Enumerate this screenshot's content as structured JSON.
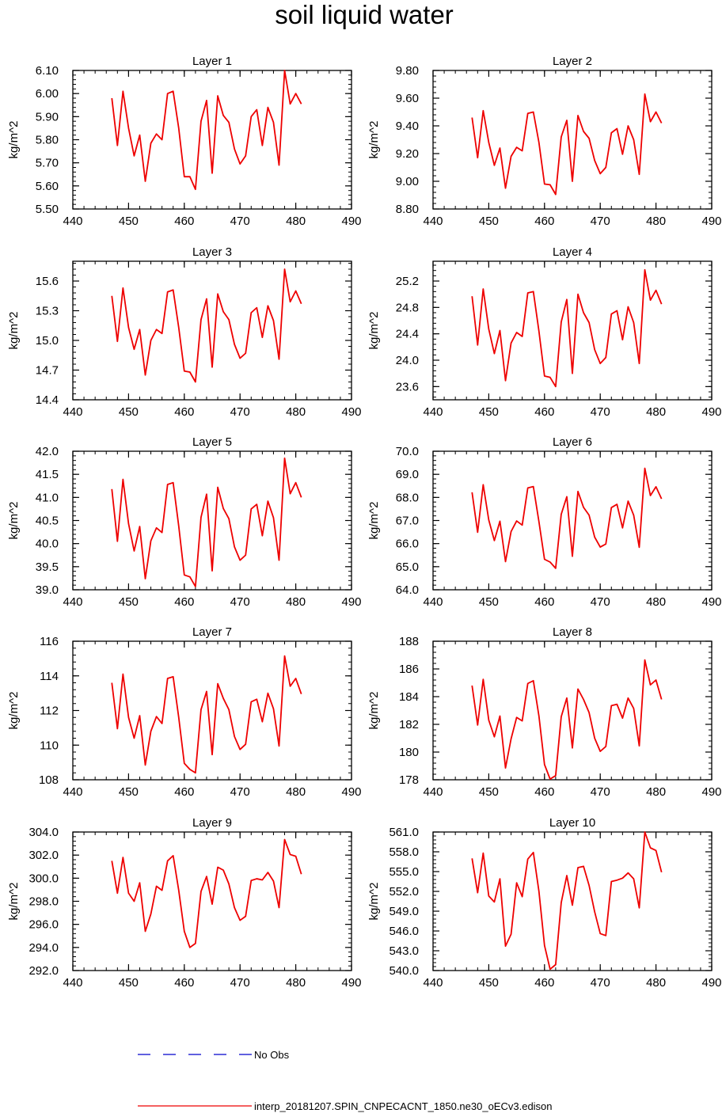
{
  "title": "soil liquid water",
  "colors": {
    "series": "#ee0000",
    "obs": "#0000cc",
    "axis": "#000000"
  },
  "legend": {
    "obs_label": "No Obs",
    "model_label": "interp_20181207.SPIN_CNPECACNT_1850.ne30_oECv3.edison"
  },
  "chart_data": [
    {
      "type": "line",
      "title": "Layer 1",
      "ylabel": "kg/m^2",
      "xlim": [
        440,
        490
      ],
      "xticks": [
        "440",
        "450",
        "460",
        "470",
        "480",
        "490"
      ],
      "ylim": [
        5.5,
        6.1
      ],
      "yticks": [
        "5.50",
        "5.60",
        "5.70",
        "5.80",
        "5.90",
        "6.00",
        "6.10"
      ],
      "x": [
        447,
        448,
        449,
        450,
        451,
        452,
        453,
        454,
        455,
        456,
        457,
        458,
        459,
        460,
        461,
        462,
        463,
        464,
        465,
        466,
        467,
        468,
        469,
        470,
        471,
        472,
        473,
        474,
        475,
        476,
        477,
        478,
        479,
        480,
        481
      ],
      "series": [
        {
          "name": "interp_20181207.SPIN_CNPECACNT_1850.ne30_oECv3.edison",
          "values": [
            5.98,
            5.775,
            6.01,
            5.85,
            5.73,
            5.82,
            5.62,
            5.785,
            5.825,
            5.8,
            6.0,
            6.01,
            5.85,
            5.64,
            5.64,
            5.585,
            5.88,
            5.97,
            5.655,
            5.99,
            5.905,
            5.875,
            5.76,
            5.695,
            5.73,
            5.9,
            5.93,
            5.775,
            5.94,
            5.875,
            5.69,
            6.1,
            5.955,
            6.0,
            5.955
          ]
        }
      ]
    },
    {
      "type": "line",
      "title": "Layer 2",
      "ylabel": "kg/m^2",
      "xlim": [
        440,
        490
      ],
      "xticks": [
        "440",
        "450",
        "460",
        "470",
        "480",
        "490"
      ],
      "ylim": [
        8.8,
        9.8
      ],
      "yticks": [
        "8.80",
        "9.00",
        "9.20",
        "9.40",
        "9.60",
        "9.80"
      ],
      "x": [
        447,
        448,
        449,
        450,
        451,
        452,
        453,
        454,
        455,
        456,
        457,
        458,
        459,
        460,
        461,
        462,
        463,
        464,
        465,
        466,
        467,
        468,
        469,
        470,
        471,
        472,
        473,
        474,
        475,
        476,
        477,
        478,
        479,
        480,
        481
      ],
      "series": [
        {
          "name": "interp_20181207.SPIN_CNPECACNT_1850.ne30_oECv3.edison",
          "values": [
            9.46,
            9.17,
            9.51,
            9.28,
            9.115,
            9.24,
            8.95,
            9.18,
            9.245,
            9.22,
            9.49,
            9.5,
            9.28,
            8.98,
            8.975,
            8.905,
            9.32,
            9.44,
            9.0,
            9.475,
            9.36,
            9.31,
            9.15,
            9.055,
            9.1,
            9.35,
            9.38,
            9.195,
            9.4,
            9.3,
            9.05,
            9.63,
            9.43,
            9.5,
            9.42
          ]
        }
      ]
    },
    {
      "type": "line",
      "title": "Layer 3",
      "ylabel": "kg/m^2",
      "xlim": [
        440,
        490
      ],
      "xticks": [
        "440",
        "450",
        "460",
        "470",
        "480",
        "490"
      ],
      "ylim": [
        14.4,
        15.8
      ],
      "yticks": [
        "14.4",
        "14.7",
        "15.0",
        "15.3",
        "15.6"
      ],
      "x": [
        447,
        448,
        449,
        450,
        451,
        452,
        453,
        454,
        455,
        456,
        457,
        458,
        459,
        460,
        461,
        462,
        463,
        464,
        465,
        466,
        467,
        468,
        469,
        470,
        471,
        472,
        473,
        474,
        475,
        476,
        477,
        478,
        479,
        480,
        481
      ],
      "series": [
        {
          "name": "interp_20181207.SPIN_CNPECACNT_1850.ne30_oECv3.edison",
          "values": [
            15.45,
            14.99,
            15.53,
            15.13,
            14.91,
            15.11,
            14.65,
            15.0,
            15.11,
            15.07,
            15.49,
            15.51,
            15.13,
            14.69,
            14.68,
            14.58,
            15.21,
            15.42,
            14.73,
            15.47,
            15.29,
            15.21,
            14.96,
            14.82,
            14.87,
            15.28,
            15.33,
            15.03,
            15.35,
            15.2,
            14.81,
            15.72,
            15.39,
            15.5,
            15.37
          ]
        }
      ]
    },
    {
      "type": "line",
      "title": "Layer 4",
      "ylabel": "kg/m^2",
      "xlim": [
        440,
        490
      ],
      "xticks": [
        "440",
        "450",
        "460",
        "470",
        "480",
        "490"
      ],
      "ylim": [
        23.4,
        25.5
      ],
      "yticks": [
        "23.6",
        "24.0",
        "24.4",
        "24.8",
        "25.2"
      ],
      "x": [
        447,
        448,
        449,
        450,
        451,
        452,
        453,
        454,
        455,
        456,
        457,
        458,
        459,
        460,
        461,
        462,
        463,
        464,
        465,
        466,
        467,
        468,
        469,
        470,
        471,
        472,
        473,
        474,
        475,
        476,
        477,
        478,
        479,
        480,
        481
      ],
      "series": [
        {
          "name": "interp_20181207.SPIN_CNPECACNT_1850.ne30_oECv3.edison",
          "values": [
            24.97,
            24.23,
            25.08,
            24.47,
            24.1,
            24.45,
            23.69,
            24.26,
            24.42,
            24.36,
            25.02,
            25.04,
            24.44,
            23.76,
            23.74,
            23.6,
            24.58,
            24.92,
            23.8,
            25.0,
            24.72,
            24.57,
            24.16,
            23.95,
            24.04,
            24.7,
            24.75,
            24.31,
            24.81,
            24.57,
            23.95,
            25.37,
            24.91,
            25.06,
            24.85
          ]
        }
      ]
    },
    {
      "type": "line",
      "title": "Layer 5",
      "ylabel": "kg/m^2",
      "xlim": [
        440,
        490
      ],
      "xticks": [
        "440",
        "450",
        "460",
        "470",
        "480",
        "490"
      ],
      "ylim": [
        39.0,
        42.0
      ],
      "yticks": [
        "39.0",
        "39.5",
        "40.0",
        "40.5",
        "41.0",
        "41.5",
        "42.0"
      ],
      "x": [
        447,
        448,
        449,
        450,
        451,
        452,
        453,
        454,
        455,
        456,
        457,
        458,
        459,
        460,
        461,
        462,
        463,
        464,
        465,
        466,
        467,
        468,
        469,
        470,
        471,
        472,
        473,
        474,
        475,
        476,
        477,
        478,
        479,
        480,
        481
      ],
      "series": [
        {
          "name": "interp_20181207.SPIN_CNPECACNT_1850.ne30_oECv3.edison",
          "values": [
            41.18,
            40.05,
            41.39,
            40.43,
            39.84,
            40.37,
            39.24,
            40.06,
            40.34,
            40.24,
            41.28,
            41.32,
            40.38,
            39.32,
            39.28,
            39.07,
            40.57,
            41.07,
            39.41,
            41.22,
            40.76,
            40.54,
            39.93,
            39.64,
            39.75,
            40.75,
            40.85,
            40.17,
            40.92,
            40.56,
            39.64,
            41.85,
            41.08,
            41.32,
            41.0
          ]
        }
      ]
    },
    {
      "type": "line",
      "title": "Layer 6",
      "ylabel": "kg/m^2",
      "xlim": [
        440,
        490
      ],
      "xticks": [
        "440",
        "450",
        "460",
        "470",
        "480",
        "490"
      ],
      "ylim": [
        64.0,
        70.0
      ],
      "yticks": [
        "64.0",
        "65.0",
        "66.0",
        "67.0",
        "68.0",
        "69.0",
        "70.0"
      ],
      "x": [
        447,
        448,
        449,
        450,
        451,
        452,
        453,
        454,
        455,
        456,
        457,
        458,
        459,
        460,
        461,
        462,
        463,
        464,
        465,
        466,
        467,
        468,
        469,
        470,
        471,
        472,
        473,
        474,
        475,
        476,
        477,
        478,
        479,
        480,
        481
      ],
      "series": [
        {
          "name": "interp_20181207.SPIN_CNPECACNT_1850.ne30_oECv3.edison",
          "values": [
            68.22,
            66.49,
            68.55,
            67.02,
            66.13,
            66.97,
            65.22,
            66.52,
            66.98,
            66.8,
            68.41,
            68.47,
            66.95,
            65.32,
            65.2,
            64.93,
            67.27,
            68.03,
            65.45,
            68.26,
            67.57,
            67.23,
            66.28,
            65.85,
            65.98,
            67.56,
            67.7,
            66.68,
            67.84,
            67.23,
            65.84,
            69.26,
            68.08,
            68.46,
            67.94
          ]
        }
      ]
    },
    {
      "type": "line",
      "title": "Layer 7",
      "ylabel": "kg/m^2",
      "xlim": [
        440,
        490
      ],
      "xticks": [
        "440",
        "450",
        "460",
        "470",
        "480",
        "490"
      ],
      "ylim": [
        108,
        116
      ],
      "yticks": [
        "108",
        "110",
        "112",
        "114",
        "116"
      ],
      "x": [
        447,
        448,
        449,
        450,
        451,
        452,
        453,
        454,
        455,
        456,
        457,
        458,
        459,
        460,
        461,
        462,
        463,
        464,
        465,
        466,
        467,
        468,
        469,
        470,
        471,
        472,
        473,
        474,
        475,
        476,
        477,
        478,
        479,
        480,
        481
      ],
      "series": [
        {
          "name": "interp_20181207.SPIN_CNPECACNT_1850.ne30_oECv3.edison",
          "values": [
            113.6,
            110.95,
            114.1,
            111.6,
            110.4,
            111.7,
            108.85,
            110.8,
            111.65,
            111.25,
            113.85,
            113.95,
            111.6,
            108.95,
            108.6,
            108.4,
            112.05,
            113.1,
            109.45,
            113.55,
            112.7,
            112.05,
            110.5,
            109.75,
            110.05,
            112.5,
            112.65,
            111.35,
            113.0,
            112.1,
            109.95,
            115.15,
            113.4,
            113.85,
            112.95
          ]
        }
      ]
    },
    {
      "type": "line",
      "title": "Layer 8",
      "ylabel": "kg/m^2",
      "xlim": [
        440,
        490
      ],
      "xticks": [
        "440",
        "450",
        "460",
        "470",
        "480",
        "490"
      ],
      "ylim": [
        178,
        188
      ],
      "yticks": [
        "178",
        "180",
        "182",
        "184",
        "186",
        "188"
      ],
      "x": [
        447,
        448,
        449,
        450,
        451,
        452,
        453,
        454,
        455,
        456,
        457,
        458,
        459,
        460,
        461,
        462,
        463,
        464,
        465,
        466,
        467,
        468,
        469,
        470,
        471,
        472,
        473,
        474,
        475,
        476,
        477,
        478,
        479,
        480,
        481
      ],
      "series": [
        {
          "name": "interp_20181207.SPIN_CNPECACNT_1850.ne30_oECv3.edison",
          "values": [
            184.8,
            181.95,
            185.25,
            182.3,
            181.1,
            182.6,
            178.85,
            180.95,
            182.5,
            182.25,
            184.95,
            185.15,
            182.6,
            179.1,
            178.05,
            178.3,
            182.55,
            183.9,
            180.3,
            184.55,
            183.8,
            182.85,
            181.0,
            180.05,
            180.4,
            183.35,
            183.45,
            182.45,
            183.9,
            183.15,
            180.45,
            186.65,
            184.85,
            185.2,
            183.8
          ]
        }
      ]
    },
    {
      "type": "line",
      "title": "Layer 9",
      "ylabel": "kg/m^2",
      "xlim": [
        440,
        490
      ],
      "xticks": [
        "440",
        "450",
        "460",
        "470",
        "480",
        "490"
      ],
      "ylim": [
        292,
        304
      ],
      "yticks": [
        "292.0",
        "294.0",
        "296.0",
        "298.0",
        "300.0",
        "302.0",
        "304.0"
      ],
      "x": [
        447,
        448,
        449,
        450,
        451,
        452,
        453,
        454,
        455,
        456,
        457,
        458,
        459,
        460,
        461,
        462,
        463,
        464,
        465,
        466,
        467,
        468,
        469,
        470,
        471,
        472,
        473,
        474,
        475,
        476,
        477,
        478,
        479,
        480,
        481
      ],
      "series": [
        {
          "name": "interp_20181207.SPIN_CNPECACNT_1850.ne30_oECv3.edison",
          "values": [
            301.5,
            298.7,
            301.8,
            298.7,
            298.0,
            299.6,
            295.4,
            296.9,
            299.3,
            298.95,
            301.5,
            301.95,
            298.95,
            295.4,
            294.0,
            294.35,
            298.85,
            300.15,
            297.75,
            300.95,
            300.7,
            299.5,
            297.45,
            296.35,
            296.7,
            299.8,
            299.95,
            299.85,
            300.5,
            299.75,
            297.45,
            303.35,
            302.05,
            301.9,
            300.35
          ]
        }
      ]
    },
    {
      "type": "line",
      "title": "Layer 10",
      "ylabel": "kg/m^2",
      "xlim": [
        440,
        490
      ],
      "xticks": [
        "440",
        "450",
        "460",
        "470",
        "480",
        "490"
      ],
      "ylim": [
        540,
        561
      ],
      "yticks": [
        "540.0",
        "543.0",
        "546.0",
        "549.0",
        "552.0",
        "555.0",
        "558.0",
        "561.0"
      ],
      "x": [
        447,
        448,
        449,
        450,
        451,
        452,
        453,
        454,
        455,
        456,
        457,
        458,
        459,
        460,
        461,
        462,
        463,
        464,
        465,
        466,
        467,
        468,
        469,
        470,
        471,
        472,
        473,
        474,
        475,
        476,
        477,
        478,
        479,
        480,
        481
      ],
      "series": [
        {
          "name": "interp_20181207.SPIN_CNPECACNT_1850.ne30_oECv3.edison",
          "values": [
            557.0,
            551.8,
            557.8,
            551.3,
            550.4,
            553.9,
            543.7,
            545.5,
            553.3,
            551.2,
            556.9,
            557.9,
            552.0,
            543.8,
            540.2,
            540.9,
            550.3,
            554.4,
            549.9,
            555.6,
            555.8,
            552.9,
            548.9,
            545.6,
            545.3,
            553.5,
            553.7,
            554.0,
            554.8,
            553.9,
            549.5,
            561.0,
            558.6,
            558.2,
            554.9
          ]
        }
      ]
    }
  ]
}
